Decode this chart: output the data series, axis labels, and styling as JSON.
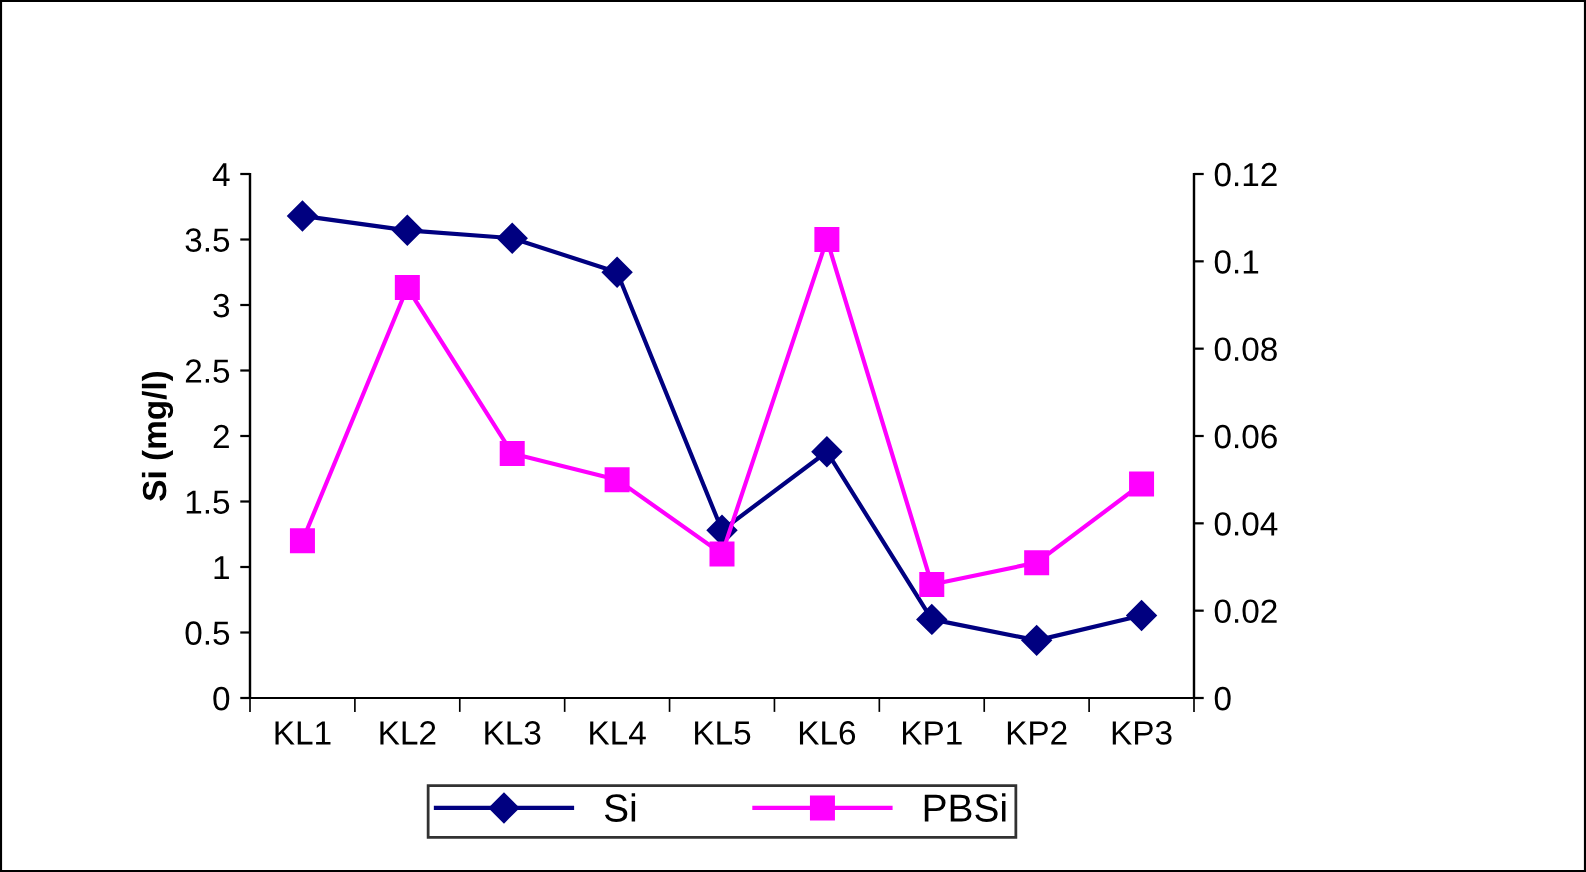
{
  "chart_data": {
    "type": "line",
    "ylabel": "Si (mg/l)",
    "categories": [
      "KL1",
      "KL2",
      "KL3",
      "KL4",
      "KL5",
      "KL6",
      "KP1",
      "KP2",
      "KP3"
    ],
    "series": [
      {
        "name": "Si",
        "color": "#000080",
        "marker": "diamond",
        "values": [
          3.68,
          3.57,
          3.51,
          3.25,
          1.28,
          1.88,
          0.6,
          0.44,
          0.63
        ]
      },
      {
        "name": "PBSi",
        "color": "#ff00ff",
        "marker": "square",
        "axis": "y2",
        "values": [
          0.036,
          0.094,
          0.056,
          0.05,
          0.033,
          0.105,
          0.026,
          0.031,
          0.049
        ]
      }
    ],
    "ylim": [
      0,
      4
    ],
    "yticks": [
      0,
      0.5,
      1,
      1.5,
      2,
      2.5,
      3,
      3.5,
      4
    ],
    "y2lim": [
      0,
      0.12
    ],
    "y2ticks": [
      0,
      0.02,
      0.04,
      0.06,
      0.08,
      0.1,
      0.12
    ],
    "grid": false,
    "legend": "bottom",
    "line_style": "solid"
  }
}
